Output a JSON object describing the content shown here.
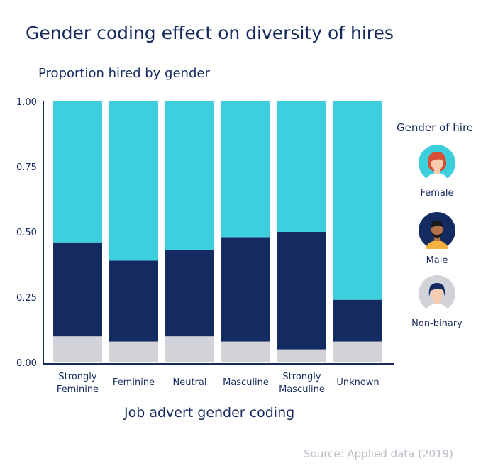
{
  "title": "Gender coding effect on diversity of hires",
  "source": "Source: Applied data (2019)",
  "legend": {
    "title": "Gender of hire",
    "items": [
      {
        "label": "Female",
        "color": "#3ecfdf",
        "icon": "female-avatar-icon"
      },
      {
        "label": "Male",
        "color": "#142b61",
        "icon": "male-avatar-icon"
      },
      {
        "label": "Non-binary",
        "color": "#d1d3d9",
        "icon": "non-binary-avatar-icon"
      }
    ]
  },
  "chart_data": {
    "type": "bar",
    "stacked": true,
    "title": "Proportion hired by gender",
    "xlabel": "Job advert gender coding",
    "ylabel": "",
    "ylim": [
      0,
      1
    ],
    "yticks": [
      "1.00",
      "0.75",
      "0.50",
      "0.25",
      "0.00"
    ],
    "ytick_values": [
      1.0,
      0.75,
      0.5,
      0.25,
      0.0
    ],
    "categories": [
      [
        "Strongly",
        "Feminine"
      ],
      [
        "Feminine"
      ],
      [
        "Neutral"
      ],
      [
        "Masculine"
      ],
      [
        "Strongly",
        "Masculine"
      ],
      [
        "Unknown"
      ]
    ],
    "series": [
      {
        "name": "Non-binary",
        "color": "#d1d3d9",
        "values": [
          0.1,
          0.08,
          0.1,
          0.08,
          0.05,
          0.08
        ]
      },
      {
        "name": "Male",
        "color": "#142b61",
        "values": [
          0.36,
          0.31,
          0.33,
          0.4,
          0.45,
          0.16
        ]
      },
      {
        "name": "Female",
        "color": "#3ecfdf",
        "values": [
          0.54,
          0.61,
          0.57,
          0.52,
          0.5,
          0.76
        ]
      }
    ],
    "grid": false,
    "legend_position": "right"
  }
}
